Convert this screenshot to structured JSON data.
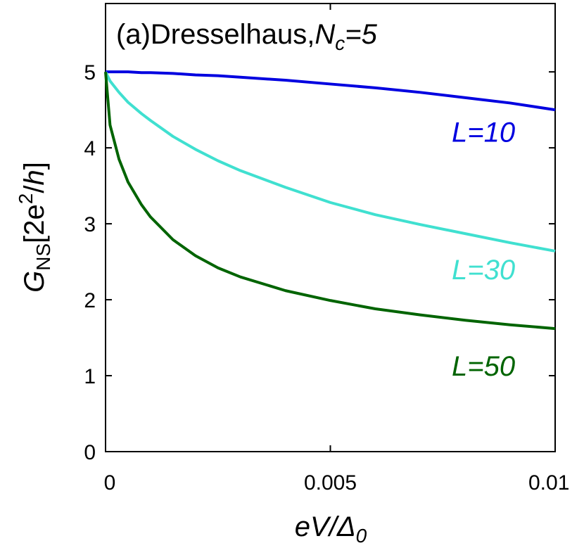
{
  "chart_data": {
    "type": "line",
    "title": "",
    "annotation": {
      "prefix": "(a)",
      "model": "Dresselhaus,",
      "var_main": "N",
      "var_sub": "c",
      "rest": "=5"
    },
    "xlabel": {
      "main": "eV/",
      "delta": "Δ",
      "sub": "0"
    },
    "ylabel": {
      "main": "G",
      "sub": "NS",
      "bracket_open": "[2e",
      "sup": "2",
      "slash": "/",
      "h": "h",
      "bracket_close": "]"
    },
    "xlim": [
      0,
      0.01
    ],
    "ylim": [
      0,
      5.9
    ],
    "xticks": [
      {
        "value": 0,
        "label": "0"
      },
      {
        "value": 0.005,
        "label": "0.005"
      },
      {
        "value": 0.01,
        "label": "0.01"
      }
    ],
    "yticks": [
      {
        "value": 0,
        "label": "0"
      },
      {
        "value": 1,
        "label": "1"
      },
      {
        "value": 2,
        "label": "2"
      },
      {
        "value": 3,
        "label": "3"
      },
      {
        "value": 4,
        "label": "4"
      },
      {
        "value": 5,
        "label": "5"
      }
    ],
    "grid": false,
    "x": [
      0,
      0.0001,
      0.0003,
      0.0005,
      0.0008,
      0.001,
      0.0015,
      0.002,
      0.0025,
      0.003,
      0.004,
      0.005,
      0.006,
      0.007,
      0.008,
      0.009,
      0.01
    ],
    "series": [
      {
        "name": "L=10",
        "label": "L=10",
        "color": "#0000e0",
        "label_x": 0.0077,
        "label_y": 4.08,
        "values": [
          5.0,
          5.0,
          5.0,
          5.0,
          4.99,
          4.99,
          4.98,
          4.96,
          4.95,
          4.93,
          4.89,
          4.84,
          4.79,
          4.73,
          4.66,
          4.59,
          4.5
        ]
      },
      {
        "name": "L=30",
        "label": "L=30",
        "color": "#40e0d0",
        "label_x": 0.0077,
        "label_y": 2.27,
        "values": [
          5.0,
          4.88,
          4.73,
          4.6,
          4.45,
          4.36,
          4.15,
          3.98,
          3.83,
          3.7,
          3.48,
          3.28,
          3.12,
          2.99,
          2.87,
          2.75,
          2.64
        ]
      },
      {
        "name": "L=50",
        "label": "L=50",
        "color": "#006400",
        "label_x": 0.0077,
        "label_y": 1.0,
        "values": [
          5.0,
          4.3,
          3.85,
          3.55,
          3.25,
          3.09,
          2.79,
          2.58,
          2.42,
          2.3,
          2.12,
          1.99,
          1.88,
          1.8,
          1.73,
          1.67,
          1.62
        ]
      }
    ]
  }
}
